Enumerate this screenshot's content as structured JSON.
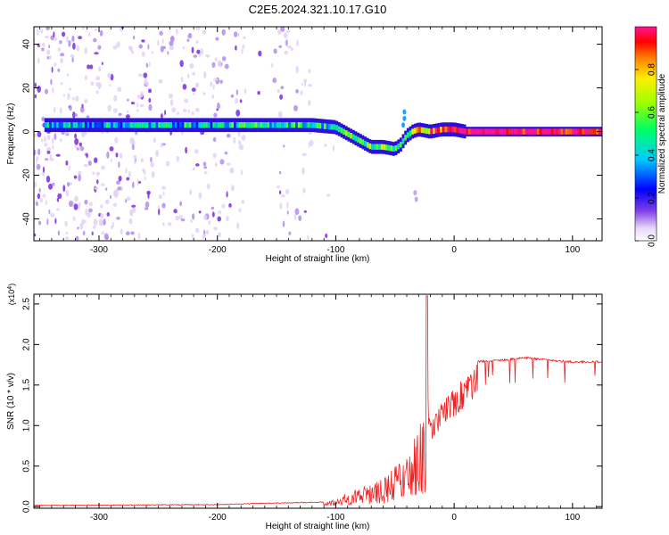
{
  "chart_data": [
    {
      "type": "heatmap",
      "title": "C2E5.2024.321.10.17.G10",
      "xlabel": "Height of straight line (km)",
      "ylabel": "Frequency (Hz)",
      "xlim": [
        -355,
        125
      ],
      "ylim": [
        -50,
        48
      ],
      "xticks": [
        -300,
        -200,
        -100,
        0,
        100
      ],
      "xtick_labels": [
        "-300",
        "-200",
        "-100",
        "0",
        "100"
      ],
      "yticks": [
        -40,
        -20,
        0,
        20,
        40
      ],
      "ytick_labels": [
        "-40",
        "-20",
        "0",
        "20",
        "40"
      ],
      "colorbar": {
        "label": "Normalized spectral amplitude",
        "range": [
          0,
          1
        ],
        "ticks": [
          0.0,
          0.2,
          0.4,
          0.6,
          0.8
        ],
        "tick_labels": [
          "0.0",
          "0.2",
          "0.4",
          "0.6",
          "0.8"
        ]
      },
      "ridge": {
        "x": [
          -345,
          -300,
          -250,
          -200,
          -150,
          -120,
          -100,
          -90,
          -80,
          -70,
          -60,
          -50,
          -45,
          -40,
          -35,
          -30,
          -20,
          -10,
          0,
          10,
          50,
          100,
          125
        ],
        "y": [
          3,
          3,
          3,
          3,
          3,
          3,
          2,
          -1,
          -4,
          -7,
          -7,
          -8,
          -6,
          -2,
          0,
          1,
          0,
          1,
          1,
          0,
          0,
          0,
          0
        ],
        "intensity": [
          0.3,
          0.3,
          0.35,
          0.35,
          0.4,
          0.4,
          0.4,
          0.45,
          0.45,
          0.5,
          0.5,
          0.5,
          0.45,
          0.5,
          0.6,
          0.65,
          0.75,
          0.85,
          0.9,
          0.95,
          0.95,
          0.95,
          0.95
        ]
      }
    },
    {
      "type": "line",
      "xlabel": "Height of straight line (km)",
      "ylabel": "SNR (10 * v/v)",
      "scale_label": "(x10",
      "scale_exponent": "4",
      "scale_close": ")",
      "xlim": [
        -355,
        125
      ],
      "ylim": [
        -0.02,
        2.62
      ],
      "xticks": [
        -300,
        -200,
        -100,
        0,
        100
      ],
      "xtick_labels": [
        "-300",
        "-200",
        "-100",
        "0",
        "100"
      ],
      "yticks": [
        0.0,
        0.5,
        1.0,
        1.5,
        2.0,
        2.5
      ],
      "ytick_labels": [
        "0.0",
        "0.5",
        "1.0",
        "1.5",
        "2.0",
        "2.5"
      ],
      "color": "#ee2222",
      "envelope": {
        "x": [
          -355,
          -200,
          -150,
          -110,
          -100,
          -80,
          -60,
          -50,
          -40,
          -30,
          -25,
          -22,
          -20,
          -10,
          0,
          10,
          20,
          40,
          60,
          80,
          100,
          125
        ],
        "y": [
          0.02,
          0.03,
          0.05,
          0.06,
          0.1,
          0.25,
          0.35,
          0.5,
          0.6,
          1.0,
          1.1,
          1.35,
          1.05,
          1.3,
          1.45,
          1.65,
          1.8,
          1.82,
          1.85,
          1.82,
          1.8,
          1.8
        ]
      },
      "spike": {
        "x": -23,
        "y": 2.6
      }
    }
  ]
}
